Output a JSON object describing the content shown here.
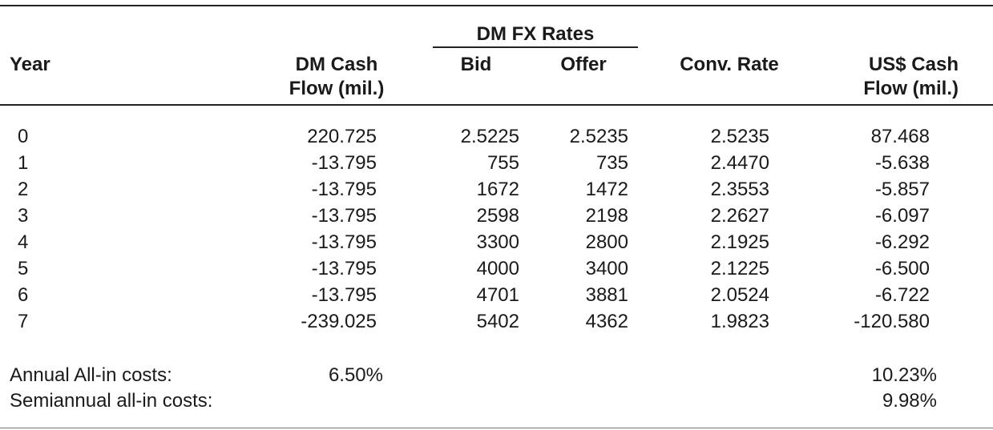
{
  "header": {
    "fx_group": "DM FX Rates",
    "year": "Year",
    "dm_cash_1": "DM Cash",
    "dm_cash_2": "Flow (mil.)",
    "bid": "Bid",
    "offer": "Offer",
    "conv_rate": "Conv. Rate",
    "us_cash_1": "US$ Cash",
    "us_cash_2": "Flow (mil.)"
  },
  "rows": [
    {
      "year": "0",
      "dm": "220.725",
      "bid": "2.5225",
      "offer": "2.5235",
      "conv": "2.5235",
      "us": "87.468"
    },
    {
      "year": "1",
      "dm": "-13.795",
      "bid": "755",
      "offer": "735",
      "conv": "2.4470",
      "us": "-5.638"
    },
    {
      "year": "2",
      "dm": "-13.795",
      "bid": "1672",
      "offer": "1472",
      "conv": "2.3553",
      "us": "-5.857"
    },
    {
      "year": "3",
      "dm": "-13.795",
      "bid": "2598",
      "offer": "2198",
      "conv": "2.2627",
      "us": "-6.097"
    },
    {
      "year": "4",
      "dm": "-13.795",
      "bid": "3300",
      "offer": "2800",
      "conv": "2.1925",
      "us": "-6.292"
    },
    {
      "year": "5",
      "dm": "-13.795",
      "bid": "4000",
      "offer": "3400",
      "conv": "2.1225",
      "us": "-6.500"
    },
    {
      "year": "6",
      "dm": "-13.795",
      "bid": "4701",
      "offer": "3881",
      "conv": "2.0524",
      "us": "-6.722"
    },
    {
      "year": "7",
      "dm": "-239.025",
      "bid": "5402",
      "offer": "4362",
      "conv": "1.9823",
      "us": "-120.580"
    }
  ],
  "summary": {
    "annual_label": "Annual All-in costs:",
    "annual_dm": "6.50%",
    "annual_us": "10.23%",
    "semiannual_label": "Semiannual all-in costs:",
    "semiannual_us": "9.98%"
  }
}
